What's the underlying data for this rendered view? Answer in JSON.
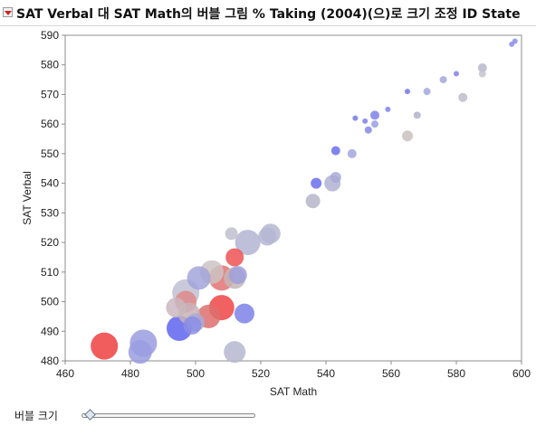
{
  "header": {
    "title": "SAT Verbal 대 SAT Math의 버블 그림 % Taking (2004)(으)로 크기 조정 ID State"
  },
  "controls": {
    "bubble_size_label": "버블 크기",
    "bubble_size_value": 0.05
  },
  "chart_data": {
    "type": "scatter",
    "xlabel": "SAT Math",
    "ylabel": "SAT Verbal",
    "xlim": [
      460,
      600
    ],
    "ylim": [
      480,
      590
    ],
    "x_ticks": [
      460,
      480,
      500,
      520,
      540,
      560,
      580,
      600
    ],
    "y_ticks": [
      480,
      490,
      500,
      510,
      520,
      530,
      540,
      550,
      560,
      570,
      580,
      590
    ],
    "grid": false,
    "size_variable": "% Taking (2004)",
    "color_variable": "% Taking (2004)",
    "points": [
      {
        "x": 598,
        "y": 588,
        "size": 3,
        "color": "#8a8ee6"
      },
      {
        "x": 597,
        "y": 587,
        "size": 3,
        "color": "#8a8ee6"
      },
      {
        "x": 588,
        "y": 579,
        "size": 5,
        "color": "#b7b7cb"
      },
      {
        "x": 588,
        "y": 577,
        "size": 4,
        "color": "#c4c4cc"
      },
      {
        "x": 582,
        "y": 569,
        "size": 5,
        "color": "#bdbdca"
      },
      {
        "x": 580,
        "y": 577,
        "size": 3,
        "color": "#8083e6"
      },
      {
        "x": 576,
        "y": 575,
        "size": 4,
        "color": "#a3a6dd"
      },
      {
        "x": 571,
        "y": 571,
        "size": 4,
        "color": "#a3a6dd"
      },
      {
        "x": 565,
        "y": 571,
        "size": 3,
        "color": "#6f74ec"
      },
      {
        "x": 568,
        "y": 563,
        "size": 4,
        "color": "#b1b1cc"
      },
      {
        "x": 565,
        "y": 556,
        "size": 6,
        "color": "#c9c1bf"
      },
      {
        "x": 559,
        "y": 565,
        "size": 3,
        "color": "#8083e6"
      },
      {
        "x": 555,
        "y": 563,
        "size": 5,
        "color": "#7c80e9"
      },
      {
        "x": 552,
        "y": 561,
        "size": 3,
        "color": "#7c80e9"
      },
      {
        "x": 555,
        "y": 560,
        "size": 4,
        "color": "#9a9de0"
      },
      {
        "x": 549,
        "y": 562,
        "size": 3,
        "color": "#7378ec"
      },
      {
        "x": 553,
        "y": 558,
        "size": 4,
        "color": "#8588e6"
      },
      {
        "x": 548,
        "y": 550,
        "size": 5,
        "color": "#a3a6dd"
      },
      {
        "x": 543,
        "y": 551,
        "size": 5,
        "color": "#6a6fee"
      },
      {
        "x": 543,
        "y": 542,
        "size": 6,
        "color": "#a8aad7"
      },
      {
        "x": 542,
        "y": 540,
        "size": 9,
        "color": "#b0b2d1"
      },
      {
        "x": 537,
        "y": 540,
        "size": 6,
        "color": "#6a6fee"
      },
      {
        "x": 536,
        "y": 534,
        "size": 8,
        "color": "#b5b5c9"
      },
      {
        "x": 523,
        "y": 523,
        "size": 11,
        "color": "#b5b7d2"
      },
      {
        "x": 522,
        "y": 522,
        "size": 10,
        "color": "#b5b7d2"
      },
      {
        "x": 511,
        "y": 523,
        "size": 7,
        "color": "#bfc0cf"
      },
      {
        "x": 516,
        "y": 520,
        "size": 14,
        "color": "#b3b5d4"
      },
      {
        "x": 512,
        "y": 515,
        "size": 10,
        "color": "#ef5252"
      },
      {
        "x": 513,
        "y": 509,
        "size": 10,
        "color": "#9d9fdc"
      },
      {
        "x": 505,
        "y": 510,
        "size": 13,
        "color": "#cbc3c3"
      },
      {
        "x": 508,
        "y": 508,
        "size": 14,
        "color": "#e37272"
      },
      {
        "x": 512,
        "y": 508,
        "size": 12,
        "color": "#c6b6b6"
      },
      {
        "x": 501,
        "y": 508,
        "size": 13,
        "color": "#a2a4d9"
      },
      {
        "x": 497,
        "y": 503,
        "size": 15,
        "color": "#c0c0d2"
      },
      {
        "x": 497,
        "y": 500,
        "size": 12,
        "color": "#df8a8a"
      },
      {
        "x": 494,
        "y": 498,
        "size": 11,
        "color": "#c9b8c0"
      },
      {
        "x": 498,
        "y": 496,
        "size": 12,
        "color": "#c8b3b8"
      },
      {
        "x": 504,
        "y": 495,
        "size": 13,
        "color": "#dd6e6e"
      },
      {
        "x": 508,
        "y": 498,
        "size": 14,
        "color": "#ee4545"
      },
      {
        "x": 515,
        "y": 496,
        "size": 11,
        "color": "#7d82e8"
      },
      {
        "x": 500,
        "y": 493,
        "size": 10,
        "color": "#a9aad5"
      },
      {
        "x": 499,
        "y": 492,
        "size": 10,
        "color": "#8a8ee3"
      },
      {
        "x": 495,
        "y": 491,
        "size": 14,
        "color": "#5f64f0"
      },
      {
        "x": 484,
        "y": 486,
        "size": 15,
        "color": "#9a9ce0"
      },
      {
        "x": 483,
        "y": 483,
        "size": 13,
        "color": "#9a9ce0"
      },
      {
        "x": 472,
        "y": 485,
        "size": 15,
        "color": "#ef4040"
      },
      {
        "x": 512,
        "y": 483,
        "size": 12,
        "color": "#b5b7d0"
      }
    ]
  }
}
